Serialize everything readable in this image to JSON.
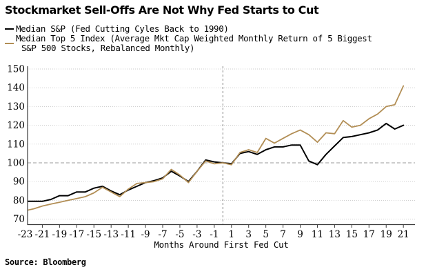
{
  "header": {
    "title": "Stockmarket Sell-Offs Are Not Why Fed Starts to Cut"
  },
  "legend": [
    {
      "label": "Median S&P (Fed Cutting Cyles Back to 1990)",
      "color": "#000000"
    },
    {
      "label_line1": "Median Top 5 Index (Average Mkt Cap Weighted Monthly Return of 5 Biggest",
      "label_line2": "S&P 500 Stocks, Rebalanced Monthly)",
      "color": "#b28e55"
    }
  ],
  "footer": {
    "source": "Source: Bloomberg"
  },
  "colors": {
    "background": "#ffffff",
    "grid_dotted": "#c9c9c9",
    "reference_dashed": "#999999",
    "axis": "#3a3a3a",
    "text": "#000000"
  },
  "chart_data": {
    "type": "line",
    "title": "Stockmarket Sell-Offs Are Not Why Fed Starts to Cut",
    "xlabel": "Months Around First Fed Cut",
    "ylabel": "",
    "ylim": [
      70,
      150
    ],
    "y_ticks": [
      70,
      80,
      90,
      100,
      110,
      120,
      130,
      140,
      150
    ],
    "x_ticks": [
      -23,
      -21,
      -19,
      -17,
      -15,
      -13,
      -11,
      -9,
      -7,
      -5,
      -3,
      -1,
      1,
      3,
      5,
      7,
      9,
      11,
      13,
      15,
      17,
      19,
      21
    ],
    "grid": "horizontal-dotted",
    "legend_position": "top-left",
    "reference_lines": {
      "horizontal_y": 100,
      "vertical_x": 0
    },
    "x": [
      -23,
      -22,
      -21,
      -20,
      -19,
      -18,
      -17,
      -16,
      -15,
      -14,
      -13,
      -12,
      -11,
      -10,
      -9,
      -8,
      -7,
      -6,
      -5,
      -4,
      -3,
      -2,
      -1,
      0,
      1,
      2,
      3,
      4,
      5,
      6,
      7,
      8,
      9,
      10,
      11,
      12,
      13,
      14,
      15,
      16,
      17,
      18,
      19,
      20,
      21
    ],
    "series": [
      {
        "name": "Median S&P (Fed Cutting Cyles Back to 1990)",
        "color": "#000000",
        "width": 2,
        "values": [
          79.5,
          79.5,
          79.5,
          80.5,
          82.5,
          82.5,
          84.5,
          84.5,
          86.5,
          87.5,
          85,
          83,
          85.5,
          87.5,
          89.5,
          90.5,
          92,
          95.5,
          93,
          90,
          95.5,
          101.5,
          100.5,
          100,
          99.5,
          105,
          106,
          104.5,
          107,
          108.5,
          108.5,
          109.5,
          109.5,
          101,
          99,
          104.5,
          109,
          113.5,
          114,
          115,
          116,
          117.5,
          121,
          118,
          120
        ]
      },
      {
        "name": "Median Top 5 Index (Average Mkt Cap Weighted Monthly Return of 5 Biggest S&P 500 Stocks, Rebalanced Monthly)",
        "color": "#b28e55",
        "width": 1.8,
        "values": [
          74.5,
          75.5,
          77,
          78,
          79,
          80,
          81,
          82,
          84,
          87,
          84.5,
          82,
          86,
          89,
          89.5,
          90,
          91.5,
          96.5,
          93.5,
          89.5,
          95.5,
          101,
          99.5,
          100,
          99,
          105.5,
          107,
          105.5,
          113,
          110.5,
          113,
          115.5,
          117.5,
          115,
          111,
          116,
          115.5,
          122.5,
          119,
          120,
          123.5,
          126,
          130,
          131,
          141
        ]
      }
    ]
  }
}
